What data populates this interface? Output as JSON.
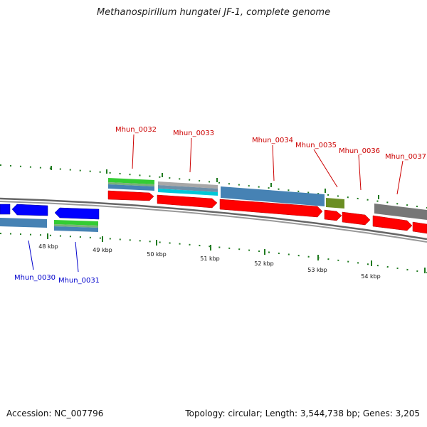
{
  "title": "Methanospirillum hungatei JF-1, complete genome",
  "accession": "Accession: NC_007796",
  "topology": "Topology: circular; Length: 3,544,738 bp; Genes: 3,205",
  "scale_labels": [
    "48 kbp",
    "49 kbp",
    "50 kbp",
    "51 kbp",
    "52 kbp",
    "53 kbp",
    "54 kbp"
  ],
  "colors": {
    "forward_label": "#cc0000",
    "reverse_label": "#0000cc",
    "cds": "#ff0000",
    "reverse_cds": "#0000ff",
    "feature_blue": "#4682b4",
    "feature_green": "#33cc33",
    "feature_cyan": "#00c8d8",
    "feature_olive": "#6b8e23",
    "feature_grey": "#777777",
    "backbone": "#888888",
    "tick": "#1f7a1f"
  },
  "forward_genes": [
    {
      "label": "Mhun_0032"
    },
    {
      "label": "Mhun_0033"
    },
    {
      "label": "Mhun_0034"
    },
    {
      "label": "Mhun_0035"
    },
    {
      "label": "Mhun_0036"
    },
    {
      "label": "Mhun_0037"
    }
  ],
  "reverse_genes": [
    {
      "label": "Mhun_0030"
    },
    {
      "label": "Mhun_0031"
    }
  ]
}
